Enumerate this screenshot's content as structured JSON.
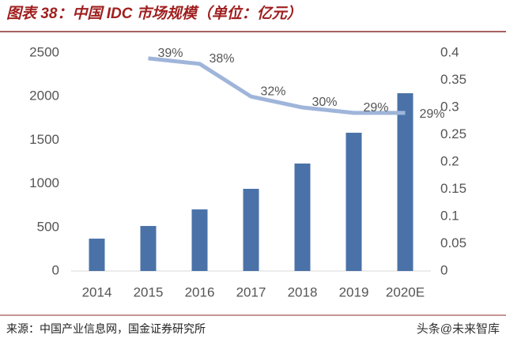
{
  "chart_data": {
    "type": "bar",
    "title": "图表 38：中国 IDC 市场规模（单位：亿元）",
    "source": "来源：中国产业信息网，国金证券研究所",
    "watermark": "头条@未来智库",
    "categories": [
      "2014",
      "2015",
      "2016",
      "2017",
      "2018",
      "2019",
      "2020E"
    ],
    "series": [
      {
        "type": "bar",
        "color": "#4a72a8",
        "values": [
          371,
          516,
          706,
          942,
          1232,
          1585,
          2038
        ]
      },
      {
        "type": "line",
        "axis": "y2",
        "color": "#9fb5da",
        "values": [
          null,
          0.39,
          0.38,
          0.32,
          0.3,
          0.29,
          0.29
        ],
        "value_labels": [
          null,
          "39%",
          "38%",
          "32%",
          "30%",
          "29%",
          "29%"
        ]
      }
    ],
    "ylim": [
      0,
      2500
    ],
    "yticks": [
      0,
      500,
      1000,
      1500,
      2000,
      2500
    ],
    "y2lim": [
      0,
      0.4
    ],
    "y2ticks": [
      0,
      0.05,
      0.1,
      0.15,
      0.2,
      0.25,
      0.3,
      0.35,
      0.4
    ],
    "grid": false
  }
}
